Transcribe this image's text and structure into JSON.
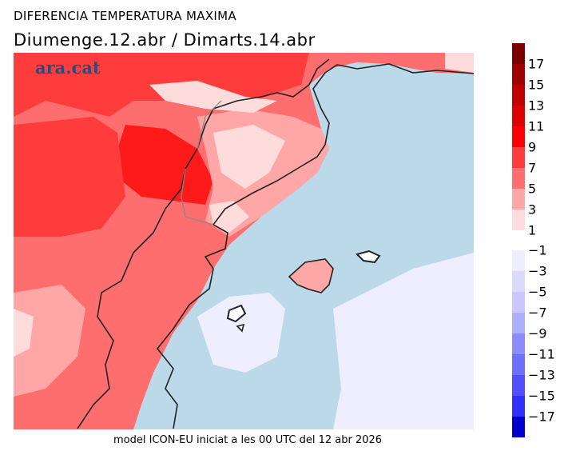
{
  "header": {
    "title": "DIFERENCIA TEMPERATURA MAXIMA",
    "subtitle": "Diumenge.12.abr  /  Dimarts.14.abr"
  },
  "logo": "ara.cat",
  "footer": "model ICON-EU iniciat a les 00 UTC del 12 abr 2026",
  "colorbar": {
    "positive": [
      {
        "label": "17",
        "color": "#7a0000"
      },
      {
        "label": "15",
        "color": "#a00000"
      },
      {
        "label": "13",
        "color": "#c00000"
      },
      {
        "label": "11",
        "color": "#dc0000"
      },
      {
        "label": "9",
        "color": "#ff0000"
      },
      {
        "label": "7",
        "color": "#ff3c3c"
      },
      {
        "label": "5",
        "color": "#ff6e6e"
      },
      {
        "label": "3",
        "color": "#ffa6a6"
      },
      {
        "label": "1",
        "color": "#ffdcdc"
      }
    ],
    "negative": [
      {
        "label": "−1",
        "color": "#eeeeff"
      },
      {
        "label": "−3",
        "color": "#dadaff"
      },
      {
        "label": "−5",
        "color": "#c8c8ff"
      },
      {
        "label": "−7",
        "color": "#aeaeff"
      },
      {
        "label": "−9",
        "color": "#8c8cff"
      },
      {
        "label": "−11",
        "color": "#6e6eff"
      },
      {
        "label": "−13",
        "color": "#5050ff"
      },
      {
        "label": "−15",
        "color": "#3030ff"
      },
      {
        "label": "−17",
        "color": "#0000cc"
      }
    ]
  },
  "colors": {
    "sea": "#bcd9ea",
    "zero": "#ffffff"
  }
}
